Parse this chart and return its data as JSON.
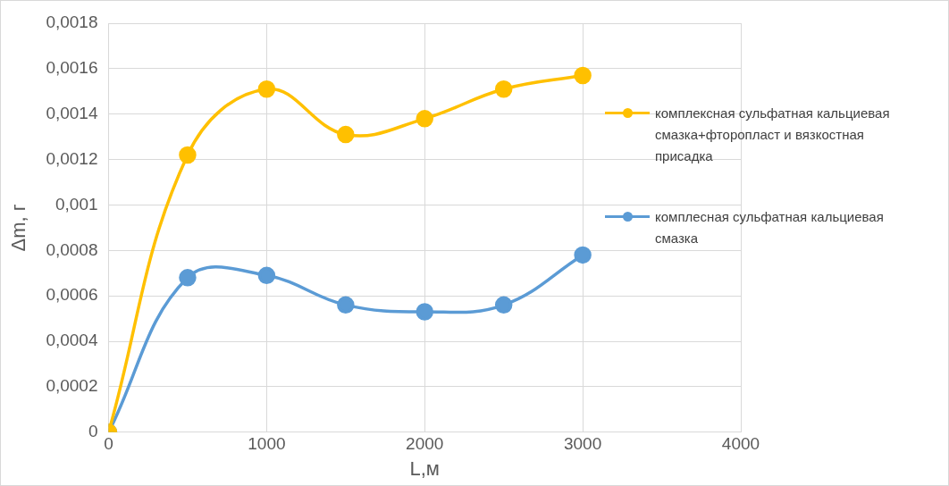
{
  "chart_data": {
    "type": "line",
    "xlabel": "L,м",
    "ylabel": "Δm, г",
    "x": [
      0,
      500,
      1000,
      1500,
      2000,
      2500,
      3000
    ],
    "xlim": [
      0,
      4000
    ],
    "xticks": [
      0,
      1000,
      2000,
      3000,
      4000
    ],
    "ylim": [
      0,
      0.0018
    ],
    "yticks": [
      {
        "value": 0,
        "label": "0"
      },
      {
        "value": 0.0002,
        "label": "0,0002"
      },
      {
        "value": 0.0004,
        "label": "0,0004"
      },
      {
        "value": 0.0006,
        "label": "0,0006"
      },
      {
        "value": 0.0008,
        "label": "0,0008"
      },
      {
        "value": 0.001,
        "label": "0,001"
      },
      {
        "value": 0.0012,
        "label": "0,0012"
      },
      {
        "value": 0.0014,
        "label": "0,0014"
      },
      {
        "value": 0.0016,
        "label": "0,0016"
      },
      {
        "value": 0.0018,
        "label": "0,0018"
      }
    ],
    "series": [
      {
        "name": "комплексная сульфатная кальциевая смазка+фторопласт и вязкостная присадка",
        "color": "#ffc000",
        "values": [
          0,
          0.00122,
          0.00151,
          0.00131,
          0.00138,
          0.00151,
          0.00157
        ]
      },
      {
        "name": "комплесная сульфатная кальциевая смазка",
        "color": "#5b9bd5",
        "values": [
          0,
          0.00068,
          0.00069,
          0.00056,
          0.00053,
          0.00056,
          0.00078
        ]
      }
    ],
    "grid": true,
    "legend": "right",
    "marker": "circle",
    "line_style": "solid"
  }
}
